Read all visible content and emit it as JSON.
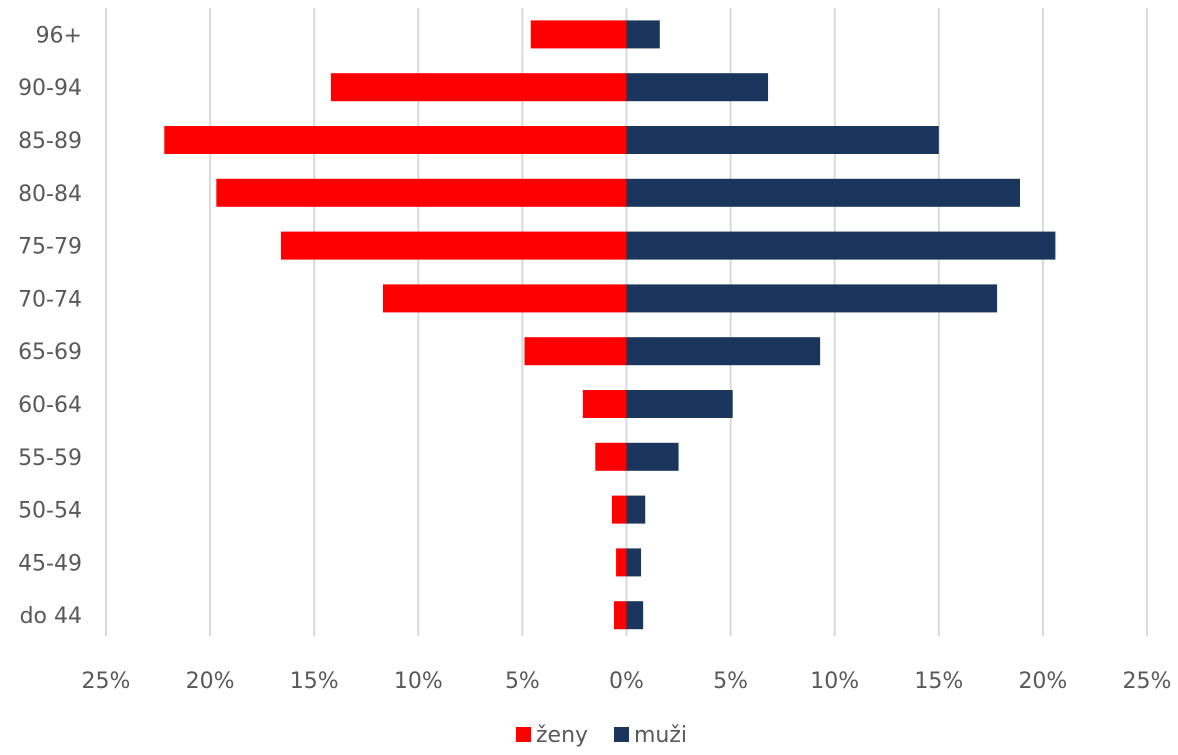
{
  "chart_data": {
    "type": "bar",
    "orientation": "horizontal",
    "title": "",
    "xlabel": "",
    "ylabel": "",
    "xlim": [
      -25,
      25
    ],
    "x_ticks": [
      -25,
      -20,
      -15,
      -10,
      -5,
      0,
      5,
      10,
      15,
      20,
      25
    ],
    "x_tick_labels": [
      "25%",
      "20%",
      "15%",
      "10%",
      "5%",
      "0%",
      "5%",
      "10%",
      "15%",
      "20%",
      "25%"
    ],
    "grid": true,
    "legend_position": "bottom",
    "categories": [
      "96+",
      "90-94",
      "85-89",
      "80-84",
      "75-79",
      "70-74",
      "65-69",
      "60-64",
      "55-59",
      "50-54",
      "45-49",
      "do 44"
    ],
    "series": [
      {
        "name": "ženy",
        "color": "#ff0000",
        "direction": "left",
        "values": [
          4.6,
          14.2,
          22.2,
          19.7,
          16.6,
          11.7,
          4.9,
          2.1,
          1.5,
          0.7,
          0.5,
          0.6
        ]
      },
      {
        "name": "muži",
        "color": "#1b365d",
        "direction": "right",
        "values": [
          1.6,
          6.8,
          15.0,
          18.9,
          20.6,
          17.8,
          9.3,
          5.1,
          2.5,
          0.9,
          0.7,
          0.8
        ]
      }
    ]
  }
}
